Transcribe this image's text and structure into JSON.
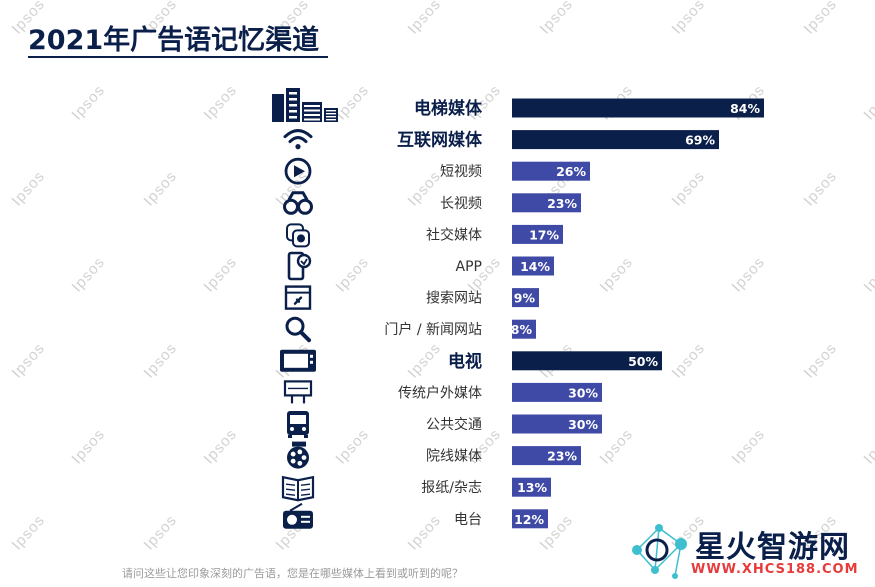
{
  "page": {
    "title": "2021年广告语记忆渠道",
    "question": "请问这些让您印象深刻的广告语，您是在哪些媒体上看到或听到的呢？",
    "watermark": "Ipsos",
    "brand": {
      "name": "星火智游网",
      "url": "WWW.XHCS188.COM"
    }
  },
  "colors": {
    "dark": "#0b1f4b",
    "light": "#3f4aa6",
    "title": "#0b1f4b"
  },
  "chart_data": {
    "type": "bar",
    "orientation": "horizontal",
    "xlim": [
      0,
      100
    ],
    "grid": false,
    "legend": "none",
    "categories": [
      "电梯媒体",
      "互联网媒体",
      "短视频",
      "长视频",
      "社交媒体",
      "APP",
      "搜索网站",
      "门户 / 新闻网站",
      "电视",
      "传统户外媒体",
      "公共交通",
      "院线媒体",
      "报纸/杂志",
      "电台"
    ],
    "values": [
      84,
      69,
      26,
      23,
      17,
      14,
      9,
      8,
      50,
      30,
      30,
      23,
      13,
      12
    ],
    "labels": [
      "84%",
      "69%",
      "26%",
      "23%",
      "17%",
      "14%",
      "9%",
      "8%",
      "50%",
      "30%",
      "30%",
      "23%",
      "13%",
      "12%"
    ],
    "groups": [
      "main",
      "main",
      "sub",
      "sub",
      "sub",
      "sub",
      "sub",
      "sub",
      "main",
      "sub",
      "sub",
      "sub",
      "sub",
      "sub"
    ],
    "icons": [
      "building-icon",
      "wifi-icon",
      "play-icon",
      "binoculars-icon",
      "social-media-icon",
      "mobile-app-icon",
      "search-website-icon",
      "magnifier-icon",
      "tv-icon",
      "billboard-icon",
      "bus-icon",
      "film-reel-icon",
      "newspaper-icon",
      "radio-icon"
    ]
  }
}
